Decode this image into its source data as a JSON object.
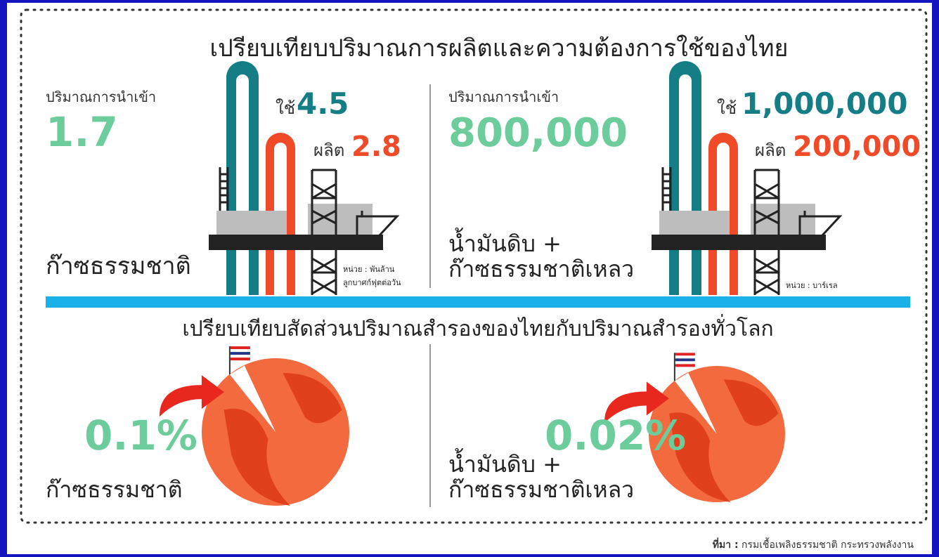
{
  "title": "เปรียบเทียบปริมาณการผลิตและความต้องการใช้ของไทย",
  "gas": {
    "import_label": "ปริมาณการนำเข้า",
    "import_value": "1.7",
    "use_label": "ใช้",
    "use_value": "4.5",
    "produce_label": "ผลิต",
    "produce_value": "2.8",
    "name": "ก๊าซธรรมชาติ",
    "unit": [
      "หน่วย : พันล้าน",
      "ลูกบาศก์ฟุตต่อวัน"
    ]
  },
  "oil": {
    "import_label": "ปริมาณการนำเข้า",
    "import_value": "800,000",
    "use_label": "ใช้",
    "use_value": "1,000,000",
    "produce_label": "ผลิต",
    "produce_value": "200,000",
    "name": [
      "น้ำมันดิบ +",
      "ก๊าซธรรมชาติเหลว"
    ],
    "unit": "หน่วย : บาร์เรล"
  },
  "reserve_title": "เปรียบเทียบสัดส่วนปริมาณสำรองของไทยกับปริมาณสำรองทั่วโลก",
  "reserves": [
    {
      "share": "0.1%",
      "name": [
        "ก๊าซธรรมชาติ"
      ]
    },
    {
      "share": "0.02%",
      "name": [
        "น้ำมันดิบ +",
        "ก๊าซธรรมชาติเหลว"
      ]
    }
  ],
  "source": {
    "label": "ที่มา :",
    "text": "กรมเชื้อเพลิงธรรมชาติ กระทรวงพลังงาน"
  }
}
